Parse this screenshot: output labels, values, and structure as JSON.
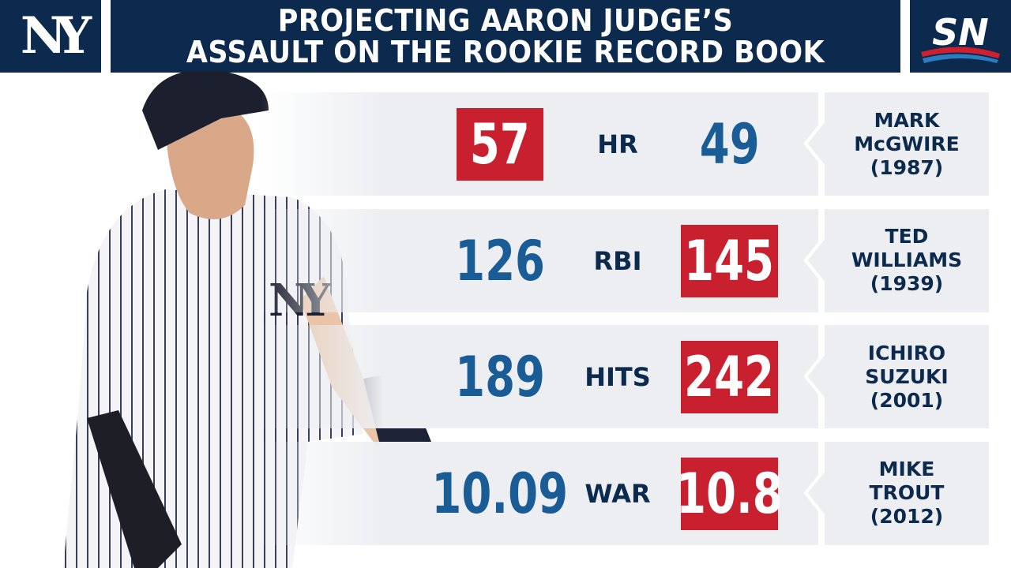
{
  "header": {
    "team_logo": "NY",
    "title": [
      "PROJECTING AARON JUDGE’S",
      "ASSAULT ON THE ROOKIE RECORD BOOK"
    ],
    "network_logo": "SN"
  },
  "rows": [
    {
      "judge": 57,
      "stat": "HR",
      "record": 49,
      "holder": [
        "MARK",
        "McGWIRE"
      ],
      "year": "(1987)"
    },
    {
      "judge": 126,
      "stat": "RBI",
      "record": 145,
      "holder": [
        "TED",
        "WILLIAMS"
      ],
      "year": "(1939)"
    },
    {
      "judge": 189,
      "stat": "HITS",
      "record": 242,
      "holder": [
        "ICHIRO",
        "SUZUKI"
      ],
      "year": "(2001)"
    },
    {
      "judge": 10.09,
      "stat": "WAR",
      "record": 10.8,
      "holder": [
        "MIKE",
        "TROUT"
      ],
      "year": "(2012)"
    }
  ]
}
